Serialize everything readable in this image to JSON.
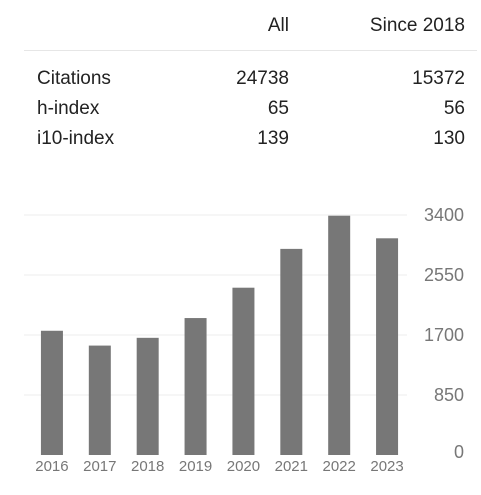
{
  "stats": {
    "header": {
      "all": "All",
      "since": "Since 2018"
    },
    "rows": [
      {
        "label": "Citations",
        "all": "24738",
        "since": "15372"
      },
      {
        "label": "h-index",
        "all": "65",
        "since": "56"
      },
      {
        "label": "i10-index",
        "all": "139",
        "since": "130"
      }
    ]
  },
  "chart_data": {
    "type": "bar",
    "categories": [
      "2016",
      "2017",
      "2018",
      "2019",
      "2020",
      "2021",
      "2022",
      "2023"
    ],
    "values": [
      1760,
      1550,
      1660,
      1940,
      2370,
      2920,
      3390,
      3070
    ],
    "y_ticks": [
      "3400",
      "2550",
      "1700",
      "850",
      "0"
    ],
    "ylim": [
      0,
      3400
    ],
    "grid": true,
    "bar_color": "#777777",
    "grid_color": "#eeeeee"
  }
}
